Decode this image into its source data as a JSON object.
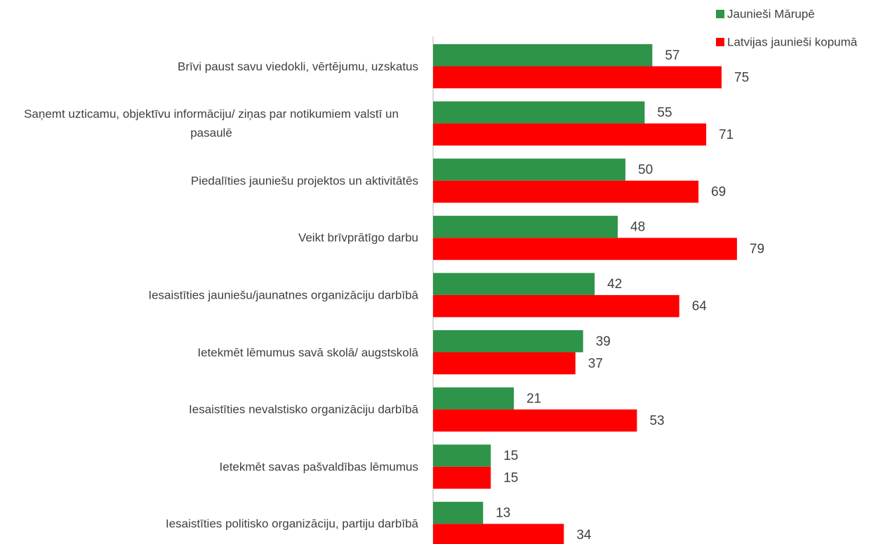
{
  "chart_data": {
    "type": "bar",
    "orientation": "horizontal",
    "categories": [
      "Brīvi paust savu viedokli, vērtējumu, uzskatus",
      "Saņemt uzticamu, objektīvu informāciju/ ziņas par notikumiem valstī un pasaulē",
      "Piedalīties jauniešu projektos un aktivitātēs",
      "Veikt brīvprātīgo darbu",
      "Iesaistīties jauniešu/jaunatnes organizāciju darbībā",
      "Ietekmēt lēmumus savā skolā/ augstskolā",
      "Iesaistīties nevalstisko organizāciju darbībā",
      "Ietekmēt savas pašvaldības lēmumus",
      "Iesaistīties politisko organizāciju, partiju darbībā"
    ],
    "series": [
      {
        "name": "Jaunieši Mārupē",
        "color": "#2e9449",
        "values": [
          57,
          55,
          50,
          48,
          42,
          39,
          21,
          15,
          13
        ]
      },
      {
        "name": "Latvijas jaunieši kopumā",
        "color": "#ff0000",
        "values": [
          75,
          71,
          69,
          79,
          64,
          37,
          53,
          15,
          34
        ]
      }
    ],
    "legend": "top-right"
  }
}
